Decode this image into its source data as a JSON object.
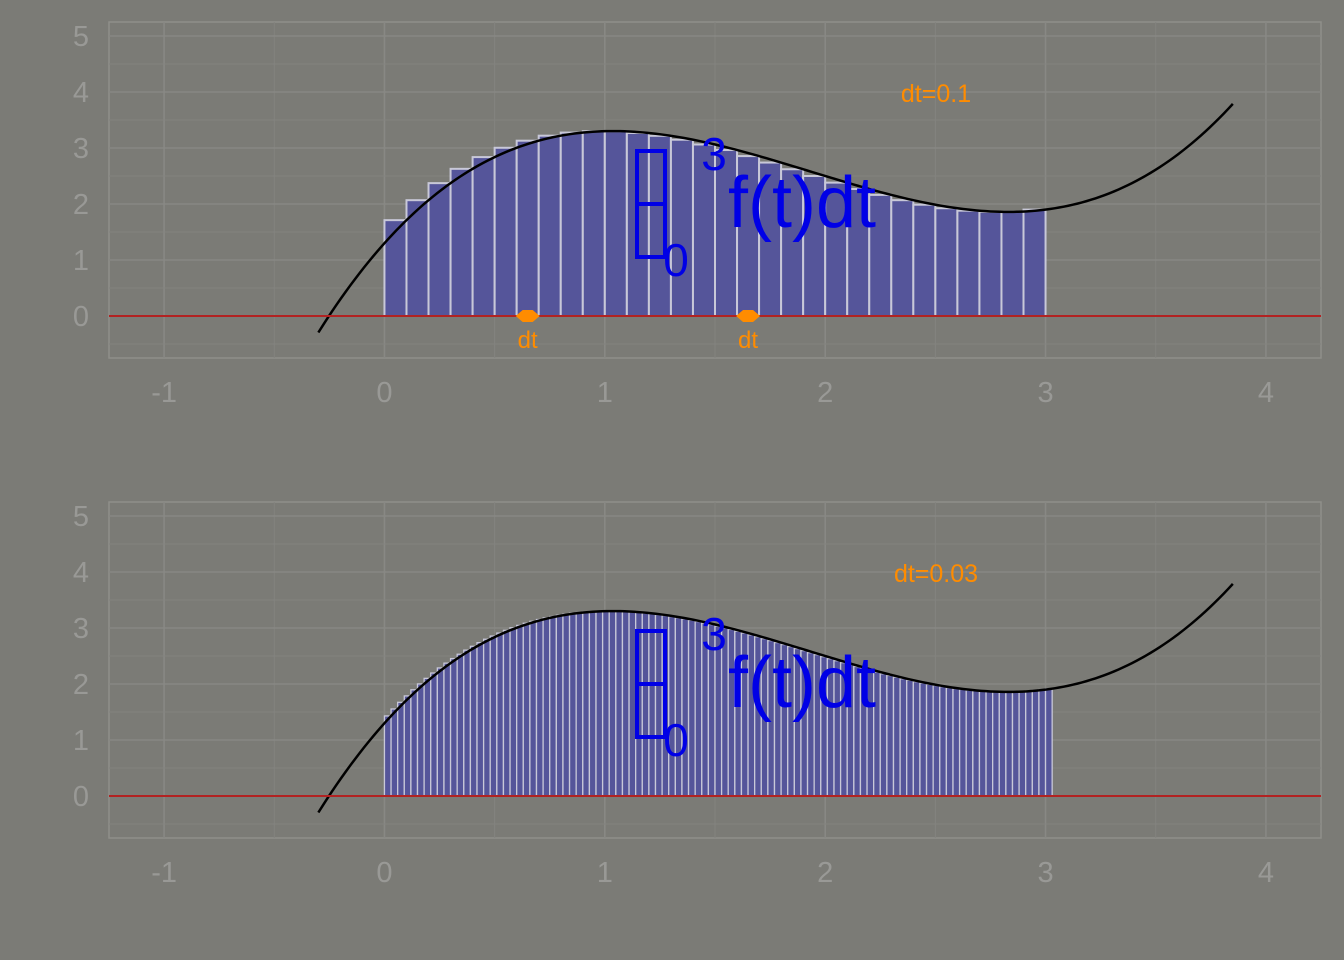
{
  "chart_data": [
    {
      "type": "bar",
      "title": "",
      "xlabel": "",
      "ylabel": "",
      "xlim": [
        -1.25,
        4.25
      ],
      "ylim": [
        -0.75,
        5.25
      ],
      "x_ticks": [
        -1,
        0,
        1,
        2,
        3,
        4
      ],
      "y_ticks": [
        0,
        1,
        2,
        3,
        4,
        5
      ],
      "grid": true,
      "dt": 0.1,
      "annotation": "dt=0.1",
      "integral": {
        "lower": "0",
        "upper": "3",
        "body": "f(t)dt"
      },
      "dt_markers": [
        {
          "x": 0.65,
          "label": "dt"
        },
        {
          "x": 1.65,
          "label": "dt"
        }
      ],
      "curve": {
        "x_range": [
          -0.3,
          3.85
        ]
      },
      "bars": {
        "x_start": 0.0,
        "x_end": 3.0
      }
    },
    {
      "type": "bar",
      "title": "",
      "xlabel": "",
      "ylabel": "",
      "xlim": [
        -1.25,
        4.25
      ],
      "ylim": [
        -0.75,
        5.25
      ],
      "x_ticks": [
        -1,
        0,
        1,
        2,
        3,
        4
      ],
      "y_ticks": [
        0,
        1,
        2,
        3,
        4,
        5
      ],
      "grid": true,
      "dt": 0.03,
      "annotation": "dt=0.03",
      "integral": {
        "lower": "0",
        "upper": "3",
        "body": "f(t)dt"
      },
      "dt_markers": [],
      "curve": {
        "x_range": [
          -0.3,
          3.85
        ]
      },
      "bars": {
        "x_start": 0.0,
        "x_end": 3.03
      }
    }
  ],
  "colors": {
    "background": "#7b7b76",
    "panel_border": "#8f8f8a",
    "grid_major": "#888884",
    "grid_minor": "#83837f",
    "tick_label": "#999996",
    "bar_fill": "#55559a",
    "bar_stroke": "#c8c8d8",
    "curve": "#000000",
    "zero_line": "#b22222",
    "annotation": "#ff8c00",
    "integral": "#0000e6"
  }
}
